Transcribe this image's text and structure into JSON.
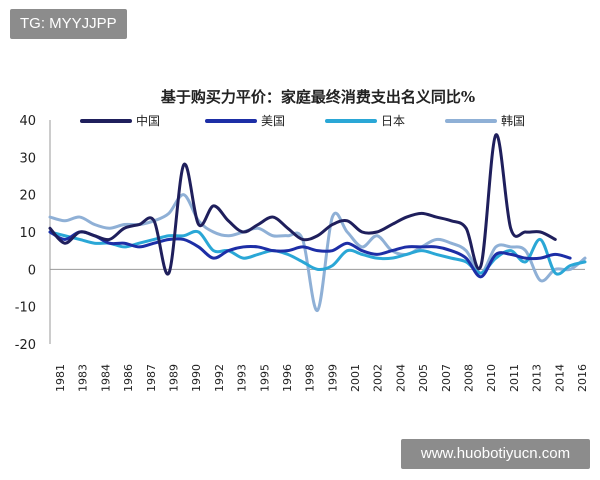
{
  "watermarks": {
    "top_left": "TG: MYYJJPP",
    "bottom_right": "www.huobotiyucn.com"
  },
  "chart_data": {
    "type": "line",
    "title": "基于购买力平价：家庭最终消费支出名义同比%",
    "xlabel": "",
    "ylabel": "",
    "ylim": [
      -20,
      40
    ],
    "yticks": [
      -20,
      -10,
      0,
      10,
      20,
      30,
      40
    ],
    "grid": false,
    "legend_position": "top",
    "x": [
      1980,
      1981,
      1982,
      1983,
      1984,
      1985,
      1986,
      1987,
      1988,
      1989,
      1990,
      1991,
      1992,
      1993,
      1994,
      1995,
      1996,
      1997,
      1998,
      1999,
      2000,
      2001,
      2002,
      2003,
      2004,
      2005,
      2006,
      2007,
      2008,
      2009,
      2010,
      2011,
      2012,
      2013,
      2014,
      2015,
      2016
    ],
    "xtick_labels": [
      "1981",
      "1983",
      "1984",
      "1986",
      "1987",
      "1989",
      "1990",
      "1992",
      "1993",
      "1995",
      "1996",
      "1998",
      "1999",
      "2001",
      "2002",
      "2004",
      "2005",
      "2007",
      "2008",
      "2010",
      "2011",
      "2013",
      "2014",
      "2016"
    ],
    "series": [
      {
        "name": "中国",
        "color": "#1f1f5c",
        "values": [
          11,
          7,
          10,
          9,
          8,
          11,
          12,
          13,
          -1,
          28,
          12,
          17,
          13,
          10,
          12,
          14,
          11,
          8,
          9,
          12,
          13,
          10,
          10,
          12,
          14,
          15,
          14,
          13,
          11,
          1,
          36,
          11,
          10,
          10,
          8,
          null,
          null
        ]
      },
      {
        "name": "美国",
        "color": "#1d2ea6",
        "values": [
          10,
          8,
          10,
          9,
          7,
          7,
          6,
          7,
          8,
          8,
          6,
          3,
          5,
          6,
          6,
          5,
          5,
          6,
          5,
          5,
          7,
          5,
          4,
          5,
          6,
          6,
          6,
          5,
          3,
          -2,
          4,
          4,
          3,
          3,
          4,
          3,
          null
        ]
      },
      {
        "name": "日本",
        "color": "#2aa7d6",
        "values": [
          10,
          9,
          8,
          7,
          7,
          6,
          7,
          8,
          9,
          9,
          10,
          5,
          5,
          3,
          4,
          5,
          4,
          2,
          0,
          1,
          5,
          4,
          3,
          3,
          4,
          5,
          4,
          3,
          2,
          -1,
          3,
          5,
          2,
          8,
          -1,
          1,
          2
        ]
      },
      {
        "name": "韩国",
        "color": "#8fb0d6",
        "values": [
          14,
          13,
          14,
          12,
          11,
          12,
          12,
          13,
          15,
          20,
          13,
          10,
          9,
          10,
          11,
          9,
          9,
          8,
          -11,
          14,
          10,
          6,
          9,
          5,
          4,
          6,
          8,
          7,
          5,
          -1,
          6,
          6,
          5,
          -3,
          0,
          0,
          3
        ]
      }
    ]
  }
}
